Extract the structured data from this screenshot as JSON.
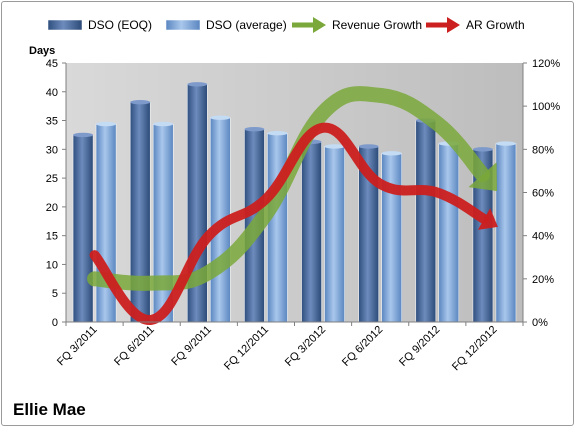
{
  "chart_data": {
    "type": "bar",
    "categories": [
      "FQ 3/2011",
      "FQ 6/2011",
      "FQ 9/2011",
      "FQ 12/2011",
      "FQ 3/2012",
      "FQ 6/2012",
      "FQ 9/2012",
      "FQ 12/2012"
    ],
    "series": [
      {
        "name": "DSO (EOQ)",
        "type": "bar",
        "axis": "left",
        "color": "#4f6fa3",
        "values": [
          32.5,
          38.2,
          41.3,
          33.5,
          31.3,
          30.5,
          35,
          30
        ]
      },
      {
        "name": "DSO (average)",
        "type": "bar",
        "axis": "left",
        "color": "#7ea6d8",
        "values": [
          34.4,
          34.4,
          35.5,
          32.8,
          30.5,
          29.3,
          31,
          31
        ]
      },
      {
        "name": "Revenue Growth",
        "type": "line",
        "axis": "right",
        "color": "#7aa83a",
        "values": [
          0.2,
          0.18,
          0.23,
          0.5,
          0.97,
          1.05,
          0.92,
          0.62
        ]
      },
      {
        "name": "AR Growth",
        "type": "line",
        "axis": "right",
        "color": "#cc1f1f",
        "values": [
          0.31,
          0.01,
          0.4,
          0.57,
          0.9,
          0.64,
          0.6,
          0.45
        ]
      }
    ],
    "ylabel": "Days",
    "ylim": [
      0,
      45
    ],
    "yticks": [
      "0",
      "5",
      "10",
      "15",
      "20",
      "25",
      "30",
      "35",
      "40",
      "45"
    ],
    "y2lim": [
      0,
      1.2
    ],
    "y2ticks": [
      "0%",
      "20%",
      "40%",
      "60%",
      "80%",
      "100%",
      "120%"
    ],
    "legend": {
      "position": "top",
      "entries": [
        "DSO (EOQ)",
        "DSO (average)",
        "Revenue Growth",
        "AR Growth"
      ]
    },
    "caption": "Ellie Mae",
    "grid": false,
    "colors": {
      "plot_bg": "#cfcfcf",
      "frame_border": "#9a9a9a"
    }
  }
}
